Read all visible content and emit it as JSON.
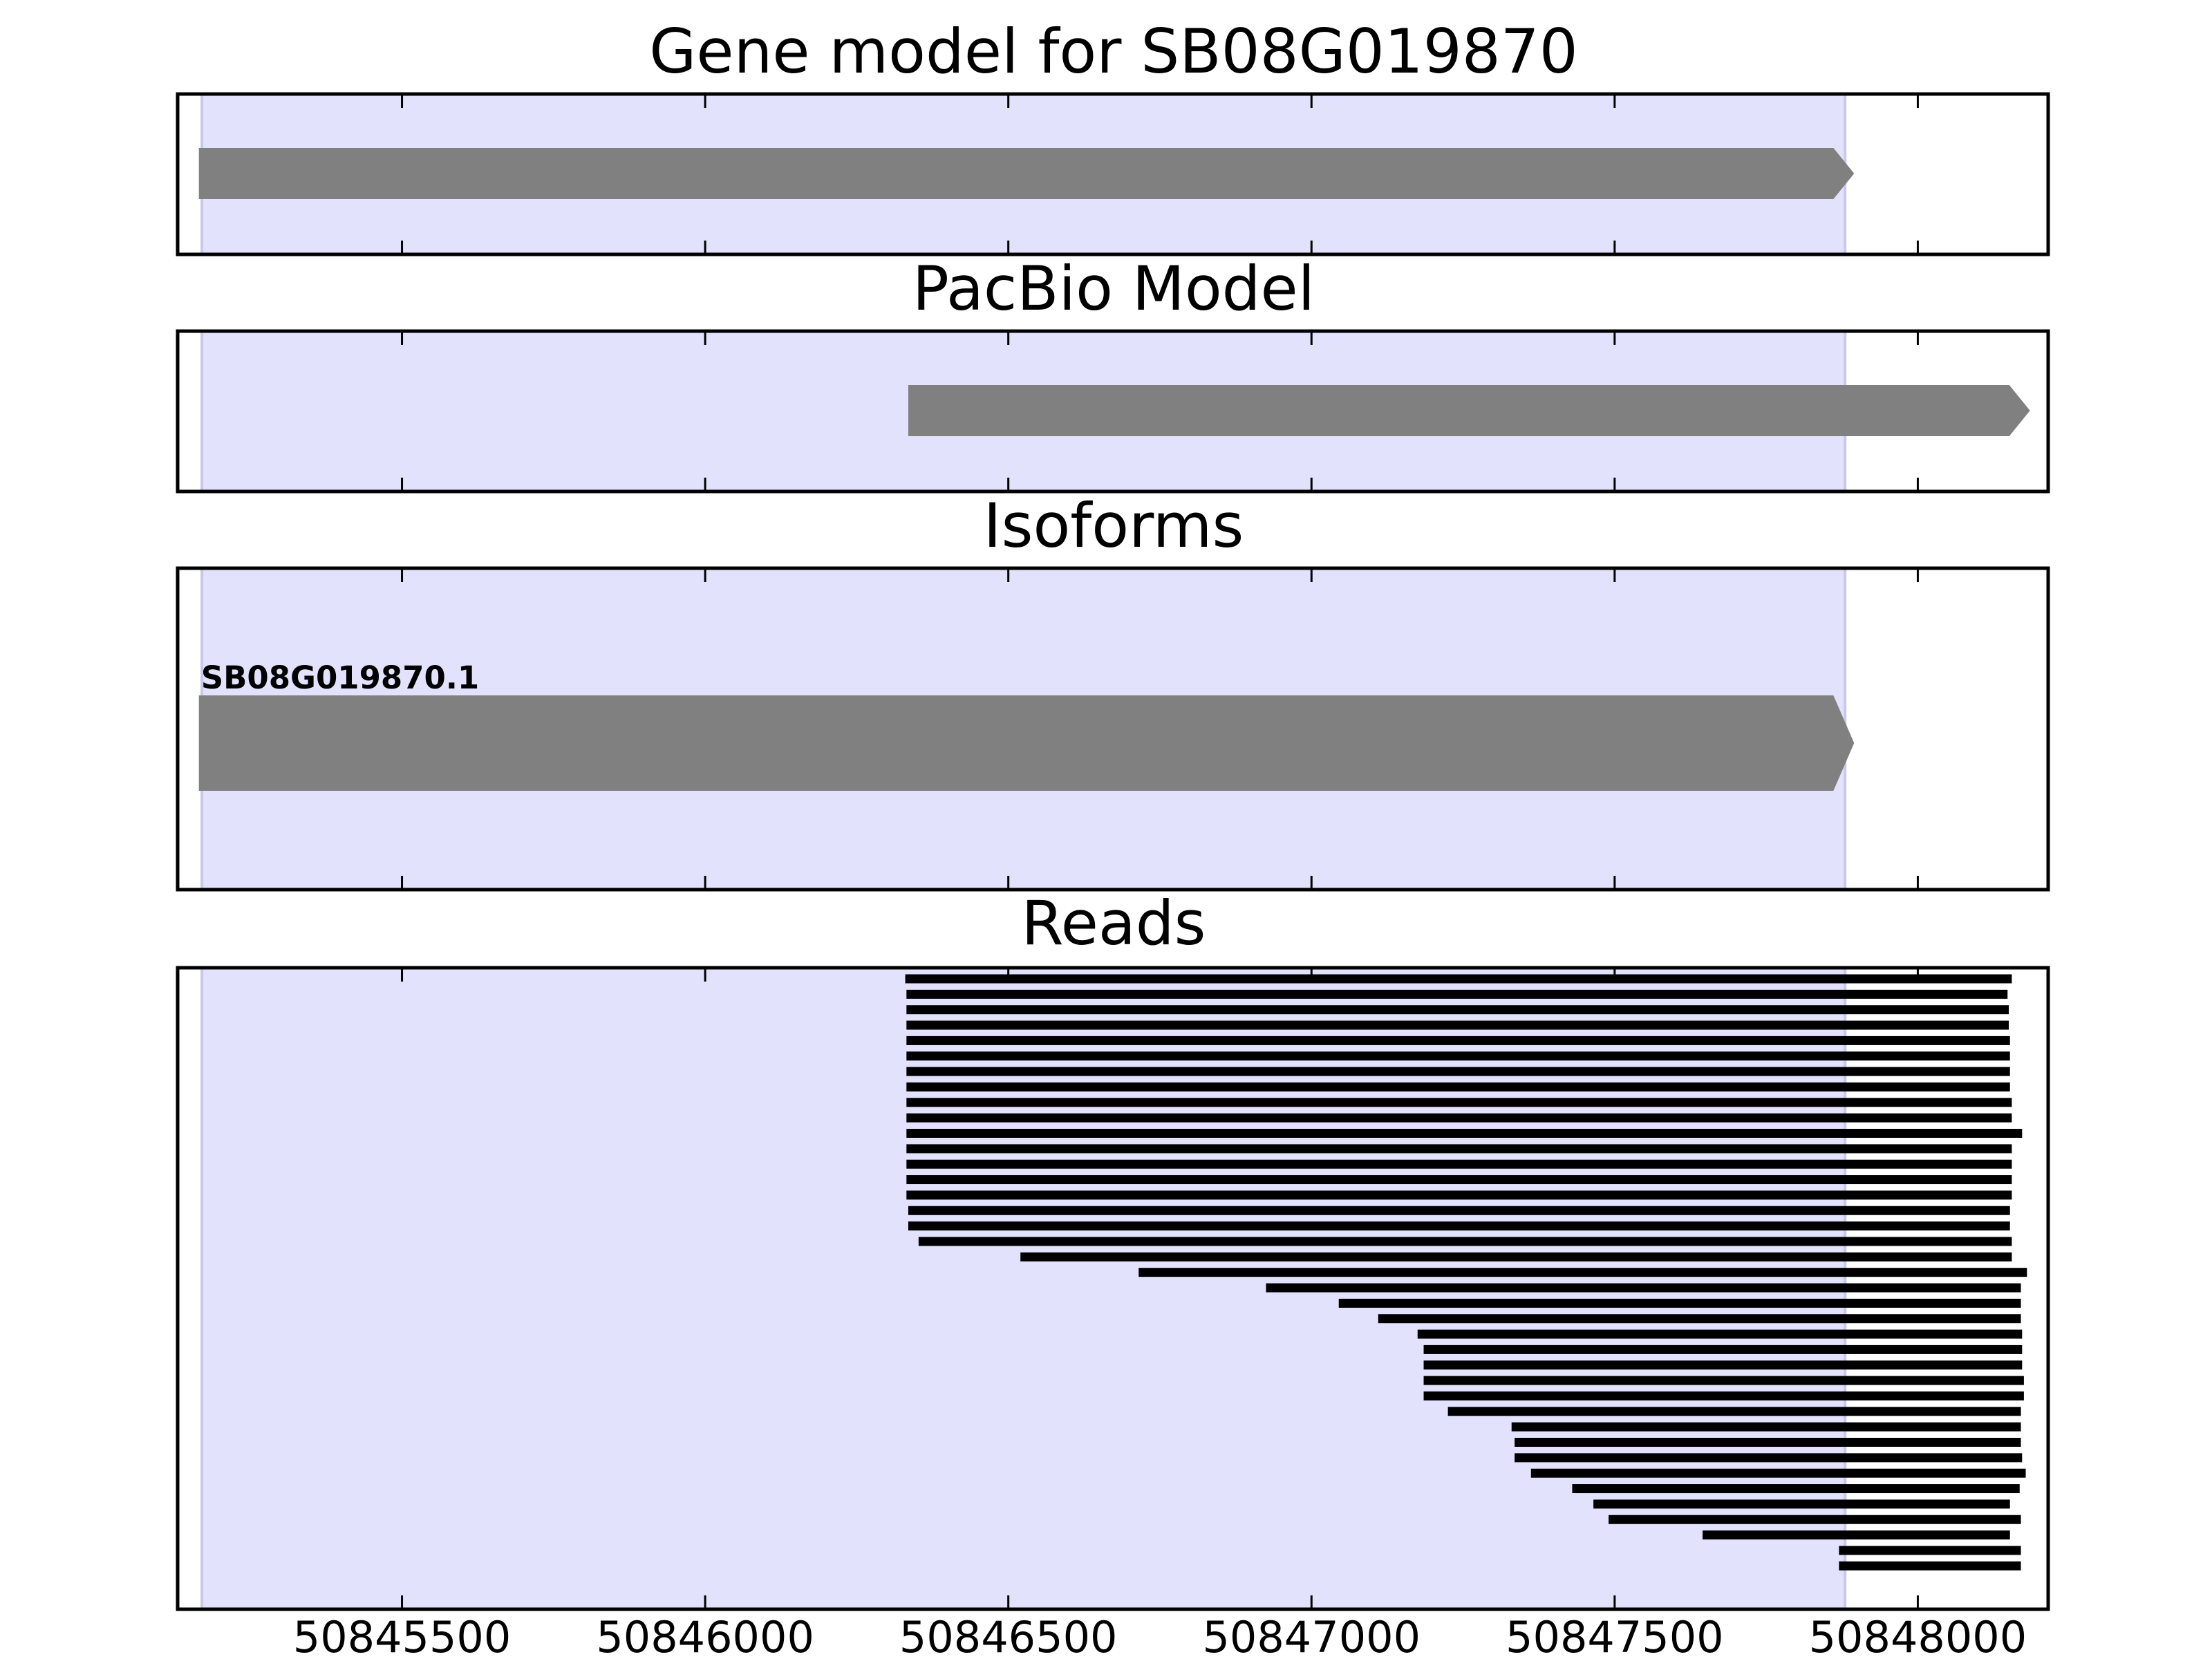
{
  "chart_data": {
    "type": "gene-track",
    "title": "Gene model for SB08G019870",
    "xlim": [
      50845130,
      50848215
    ],
    "x_ticks": [
      50845500,
      50846000,
      50846500,
      50847000,
      50847500,
      50848000
    ],
    "x_tick_labels": [
      "50845500",
      "50846000",
      "50846500",
      "50847000",
      "50847500",
      "50848000"
    ],
    "highlight_region": [
      50845170,
      50847880
    ],
    "colors": {
      "highlight": "#e2e2fc",
      "feature": "#808080",
      "read": "#000000",
      "frame": "#000000"
    },
    "panels": [
      {
        "id": "gene-model",
        "title": "Gene model for SB08G019870",
        "features": [
          {
            "start": 50845165,
            "end": 50847895,
            "strand": "+",
            "label": ""
          }
        ]
      },
      {
        "id": "pacbio-model",
        "title": "PacBio Model",
        "features": [
          {
            "start": 50846335,
            "end": 50848185,
            "strand": "+",
            "label": ""
          }
        ]
      },
      {
        "id": "isoforms",
        "title": "Isoforms",
        "features": [
          {
            "start": 50845165,
            "end": 50847895,
            "strand": "+",
            "label": "SB08G019870.1"
          }
        ]
      },
      {
        "id": "reads",
        "title": "Reads",
        "reads": [
          [
            50846330,
            50848155
          ],
          [
            50846332,
            50848148
          ],
          [
            50846332,
            50848150
          ],
          [
            50846332,
            50848150
          ],
          [
            50846332,
            50848152
          ],
          [
            50846332,
            50848152
          ],
          [
            50846332,
            50848152
          ],
          [
            50846332,
            50848152
          ],
          [
            50846332,
            50848155
          ],
          [
            50846332,
            50848155
          ],
          [
            50846332,
            50848172
          ],
          [
            50846332,
            50848155
          ],
          [
            50846332,
            50848155
          ],
          [
            50846332,
            50848155
          ],
          [
            50846332,
            50848155
          ],
          [
            50846335,
            50848152
          ],
          [
            50846335,
            50848152
          ],
          [
            50846352,
            50848155
          ],
          [
            50846520,
            50848155
          ],
          [
            50846715,
            50848180
          ],
          [
            50846925,
            50848170
          ],
          [
            50847045,
            50848170
          ],
          [
            50847110,
            50848170
          ],
          [
            50847175,
            50848172
          ],
          [
            50847185,
            50848172
          ],
          [
            50847185,
            50848172
          ],
          [
            50847185,
            50848175
          ],
          [
            50847185,
            50848175
          ],
          [
            50847225,
            50848170
          ],
          [
            50847330,
            50848170
          ],
          [
            50847335,
            50848170
          ],
          [
            50847335,
            50848172
          ],
          [
            50847362,
            50848178
          ],
          [
            50847430,
            50848168
          ],
          [
            50847465,
            50848152
          ],
          [
            50847490,
            50848170
          ],
          [
            50847645,
            50848152
          ],
          [
            50847870,
            50848170
          ],
          [
            50847870,
            50848170
          ]
        ]
      }
    ]
  }
}
